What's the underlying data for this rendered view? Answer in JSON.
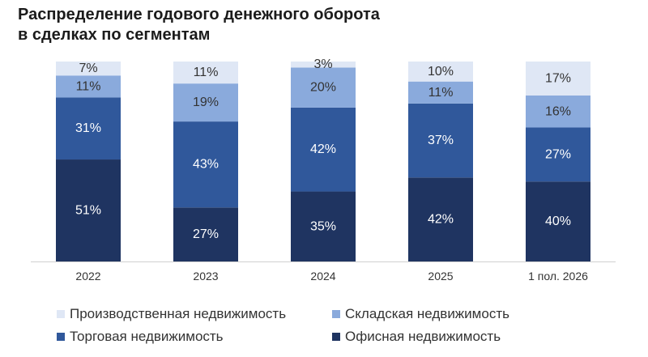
{
  "title_line1": "Распределение годового денежного оборота",
  "title_line2": "в сделках по сегментам",
  "chart_data": {
    "type": "bar",
    "stacked": true,
    "normalized_percent": true,
    "title": "Распределение годового денежного оборота в сделках по сегментам",
    "categories": [
      "2022",
      "2023",
      "2024",
      "2025",
      "1 пол. 2026"
    ],
    "series": [
      {
        "name": "Офисная недвижимость",
        "color": "#1f3461",
        "values": [
          51,
          27,
          35,
          42,
          40
        ]
      },
      {
        "name": "Торговая недвижимость",
        "color": "#30589b",
        "values": [
          31,
          43,
          42,
          37,
          27
        ]
      },
      {
        "name": "Складская недвижимость",
        "color": "#8aaadc",
        "values": [
          11,
          19,
          20,
          11,
          16
        ]
      },
      {
        "name": "Производственная недвижимость",
        "color": "#dfe7f5",
        "values": [
          7,
          11,
          3,
          10,
          17
        ]
      }
    ],
    "label_suffix": "%",
    "ylim": [
      0,
      100
    ],
    "grid": false,
    "legend_position": "bottom"
  },
  "legend": [
    {
      "label": "Производственная недвижимость",
      "color": "#dfe7f5"
    },
    {
      "label": "Складская недвижимость",
      "color": "#8aaadc"
    },
    {
      "label": "Торговая недвижимость",
      "color": "#30589b"
    },
    {
      "label": "Офисная недвижимость",
      "color": "#1f3461"
    }
  ]
}
